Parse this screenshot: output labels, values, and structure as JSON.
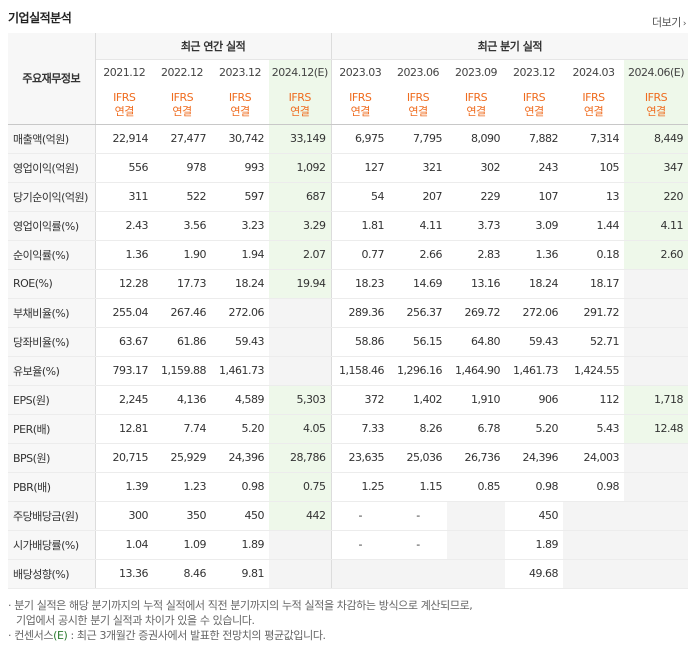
{
  "header": {
    "title": "기업실적분석",
    "more": "더보기",
    "more_arrow": "›"
  },
  "table": {
    "row_header": "주요재무정보",
    "group_annual": "최근 연간 실적",
    "group_quarter": "최근 분기 실적",
    "annual_periods": [
      "2021.12",
      "2022.12",
      "2023.12",
      "2024.12(E)"
    ],
    "quarter_periods": [
      "2023.03",
      "2023.06",
      "2023.09",
      "2023.12",
      "2024.03",
      "2024.06(E)"
    ],
    "basis_line1": "IFRS",
    "basis_line2": "연결",
    "rows": [
      {
        "label": "매출액(억원)",
        "values": [
          "22,914",
          "27,477",
          "30,742",
          "33,149",
          "6,975",
          "7,795",
          "8,090",
          "7,882",
          "7,314",
          "8,449"
        ]
      },
      {
        "label": "영업이익(억원)",
        "values": [
          "556",
          "978",
          "993",
          "1,092",
          "127",
          "321",
          "302",
          "243",
          "105",
          "347"
        ]
      },
      {
        "label": "당기순이익(억원)",
        "values": [
          "311",
          "522",
          "597",
          "687",
          "54",
          "207",
          "229",
          "107",
          "13",
          "220"
        ]
      },
      {
        "label": "영업이익률(%)",
        "values": [
          "2.43",
          "3.56",
          "3.23",
          "3.29",
          "1.81",
          "4.11",
          "3.73",
          "3.09",
          "1.44",
          "4.11"
        ]
      },
      {
        "label": "순이익률(%)",
        "values": [
          "1.36",
          "1.90",
          "1.94",
          "2.07",
          "0.77",
          "2.66",
          "2.83",
          "1.36",
          "0.18",
          "2.60"
        ]
      },
      {
        "label": "ROE(%)",
        "values": [
          "12.28",
          "17.73",
          "18.24",
          "19.94",
          "18.23",
          "14.69",
          "13.16",
          "18.24",
          "18.17",
          ""
        ]
      },
      {
        "label": "부채비율(%)",
        "values": [
          "255.04",
          "267.46",
          "272.06",
          "",
          "289.36",
          "256.37",
          "269.72",
          "272.06",
          "291.72",
          ""
        ]
      },
      {
        "label": "당좌비율(%)",
        "values": [
          "63.67",
          "61.86",
          "59.43",
          "",
          "58.86",
          "56.15",
          "64.80",
          "59.43",
          "52.71",
          ""
        ]
      },
      {
        "label": "유보율(%)",
        "values": [
          "793.17",
          "1,159.88",
          "1,461.73",
          "",
          "1,158.46",
          "1,296.16",
          "1,464.90",
          "1,461.73",
          "1,424.55",
          ""
        ]
      },
      {
        "label": "EPS(원)",
        "values": [
          "2,245",
          "4,136",
          "4,589",
          "5,303",
          "372",
          "1,402",
          "1,910",
          "906",
          "112",
          "1,718"
        ]
      },
      {
        "label": "PER(배)",
        "values": [
          "12.81",
          "7.74",
          "5.20",
          "4.05",
          "7.33",
          "8.26",
          "6.78",
          "5.20",
          "5.43",
          "12.48"
        ]
      },
      {
        "label": "BPS(원)",
        "values": [
          "20,715",
          "25,929",
          "24,396",
          "28,786",
          "23,635",
          "25,036",
          "26,736",
          "24,396",
          "24,003",
          ""
        ]
      },
      {
        "label": "PBR(배)",
        "values": [
          "1.39",
          "1.23",
          "0.98",
          "0.75",
          "1.25",
          "1.15",
          "0.85",
          "0.98",
          "0.98",
          ""
        ]
      },
      {
        "label": "주당배당금(원)",
        "values": [
          "300",
          "350",
          "450",
          "442",
          "-",
          "-",
          "",
          "450",
          "",
          ""
        ]
      },
      {
        "label": "시가배당률(%)",
        "values": [
          "1.04",
          "1.09",
          "1.89",
          "",
          "-",
          "-",
          "",
          "1.89",
          "",
          ""
        ]
      },
      {
        "label": "배당성향(%)",
        "values": [
          "13.36",
          "8.46",
          "9.81",
          "",
          "",
          "",
          "",
          "49.68",
          "",
          ""
        ]
      }
    ]
  },
  "notes": {
    "note1": "· 분기 실적은 해당 분기까지의 누적 실적에서 직전 분기까지의 누적 실적을 차감하는 방식으로 계산되므로,",
    "note1b": "기업에서 공시한 분기 실적과 차이가 있을 수 있습니다.",
    "note2_prefix": "· 컨센서스",
    "note2_mark": "(E)",
    "note2_suffix": " : 최근 3개월간 증권사에서 발표한 전망치의 평균값입니다."
  }
}
